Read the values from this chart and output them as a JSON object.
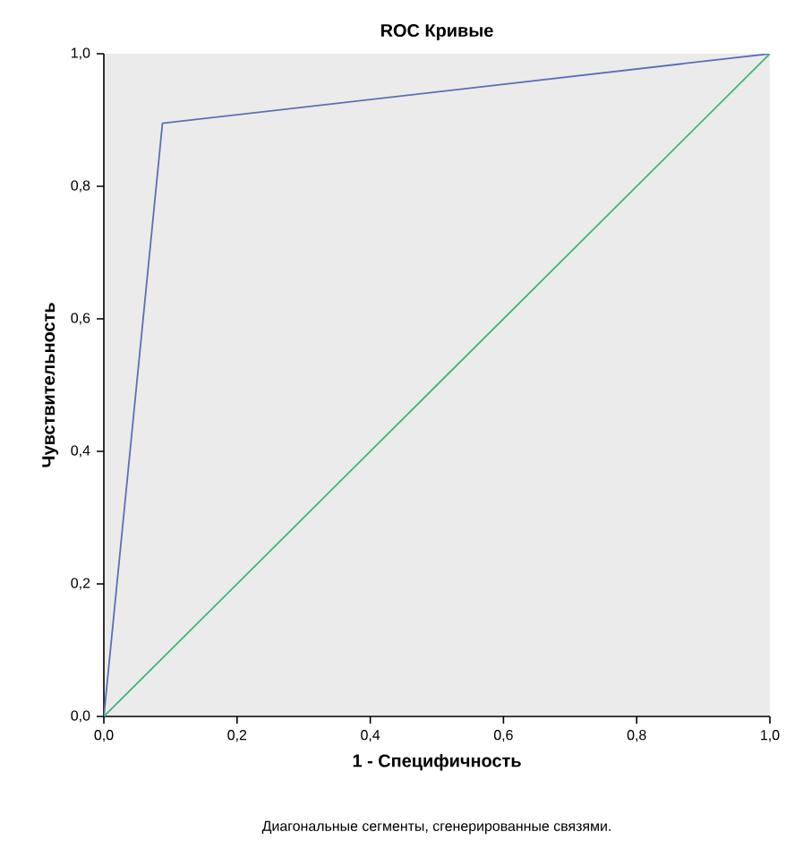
{
  "chart_data": {
    "type": "line",
    "title": "ROC Кривые",
    "xlabel": "1 - Специфичность",
    "ylabel": "Чувствительность",
    "annotations": [
      "Диагональные сегменты, сгенерированные связями."
    ],
    "series": [
      {
        "x": [
          0,
          0.088,
          1
        ],
        "values": [
          0,
          0.895,
          1
        ],
        "color": "#5b6fb5"
      },
      {
        "x": [
          0,
          1
        ],
        "values": [
          0,
          1
        ],
        "color": "#3cb878"
      }
    ],
    "xlim": [
      0,
      1
    ],
    "ylim": [
      0,
      1
    ],
    "xticks": [
      {
        "value": 0,
        "label": "0,0"
      },
      {
        "value": 0.2,
        "label": "0,2"
      },
      {
        "value": 0.4,
        "label": "0,4"
      },
      {
        "value": 0.6,
        "label": "0,6"
      },
      {
        "value": 0.8,
        "label": "0,8"
      },
      {
        "value": 1,
        "label": "1,0"
      }
    ],
    "yticks": [
      {
        "value": 0,
        "label": "0,0"
      },
      {
        "value": 0.2,
        "label": "0,2"
      },
      {
        "value": 0.4,
        "label": "0,4"
      },
      {
        "value": 0.6,
        "label": "0,6"
      },
      {
        "value": 0.8,
        "label": "0,8"
      },
      {
        "value": 1,
        "label": "1,0"
      }
    ],
    "marker": "none",
    "line_style": "solid"
  }
}
